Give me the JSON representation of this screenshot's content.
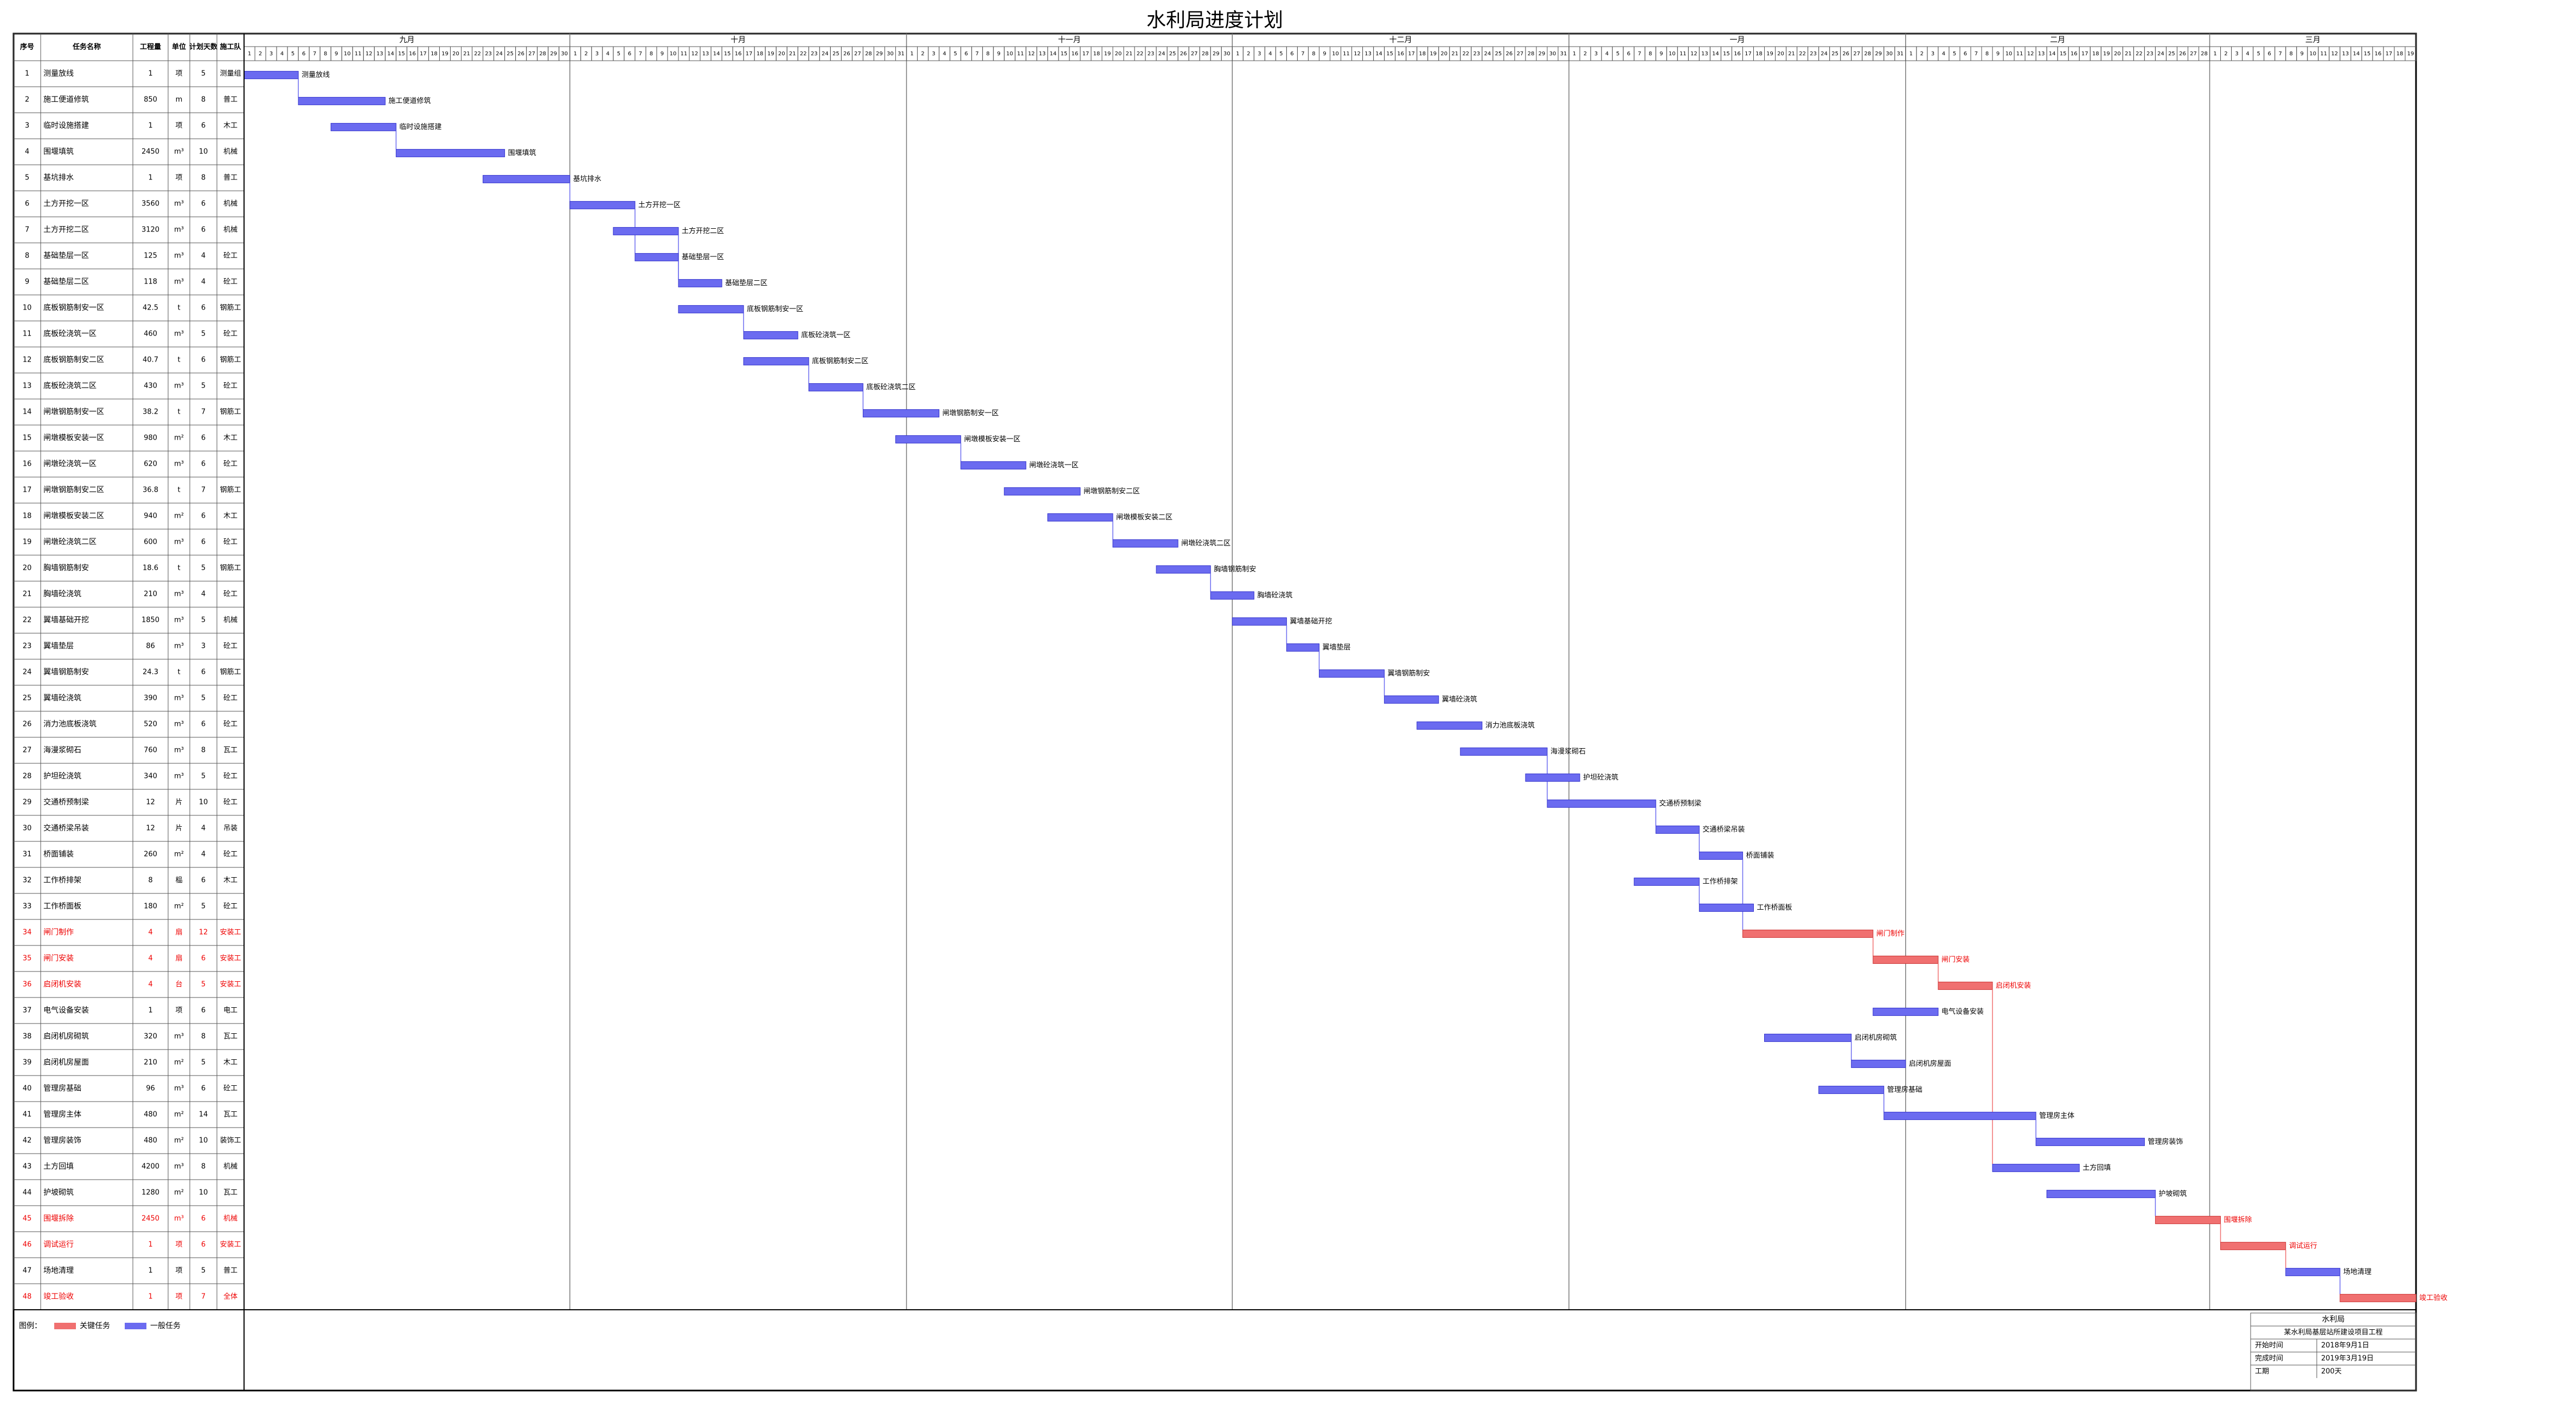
{
  "chart_data": {
    "type": "gantt",
    "title": "水利局进度计划",
    "columns": [
      "序号",
      "任务名称",
      "工程量",
      "单位",
      "计划天数",
      "施工队"
    ],
    "months": [
      {
        "label": "九月",
        "start": 0
      },
      {
        "label": "十月",
        "start": 30
      },
      {
        "label": "十一月",
        "start": 61
      },
      {
        "label": "十二月",
        "start": 91
      },
      {
        "label": "一月",
        "start": 122
      },
      {
        "label": "二月",
        "start": 153
      },
      {
        "label": "三月",
        "start": 181
      }
    ],
    "days": [
      1,
      2,
      3,
      4,
      5,
      6,
      7,
      8,
      9,
      10,
      11,
      12,
      13,
      14,
      15,
      16,
      17,
      18,
      19,
      20,
      21,
      22,
      23,
      24,
      25,
      26,
      27,
      28,
      29,
      30,
      1,
      2,
      3,
      4,
      5,
      6,
      7,
      8,
      9,
      10,
      11,
      12,
      13,
      14,
      15,
      16,
      17,
      18,
      19,
      20,
      21,
      22,
      23,
      24,
      25,
      26,
      27,
      28,
      29,
      30,
      31,
      1,
      2,
      3,
      4,
      5,
      6,
      7,
      8,
      9,
      10,
      11,
      12,
      13,
      14,
      15,
      16,
      17,
      18,
      19,
      20,
      21,
      22,
      23,
      24,
      25,
      26,
      27,
      28,
      29,
      30,
      1,
      2,
      3,
      4,
      5,
      6,
      7,
      8,
      9,
      10,
      11,
      12,
      13,
      14,
      15,
      16,
      17,
      18,
      19,
      20,
      21,
      22,
      23,
      24,
      25,
      26,
      27,
      28,
      29,
      30,
      31,
      1,
      2,
      3,
      4,
      5,
      6,
      7,
      8,
      9,
      10,
      11,
      12,
      13,
      14,
      15,
      16,
      17,
      18,
      19,
      20,
      21,
      22,
      23,
      24,
      25,
      26,
      27,
      28,
      29,
      30,
      31,
      1,
      2,
      3,
      4,
      5,
      6,
      7,
      8,
      9,
      10,
      11,
      12,
      13,
      14,
      15,
      16,
      17,
      18,
      19,
      20,
      21,
      22,
      23,
      24,
      25,
      26,
      27,
      28,
      1,
      2,
      3,
      4,
      5,
      6,
      7,
      8,
      9,
      10,
      11,
      12,
      13,
      14,
      15,
      16,
      17,
      18,
      19
    ],
    "xlim": [
      0,
      200
    ],
    "ids": [
      1,
      2,
      3,
      4,
      5,
      6,
      7,
      8,
      9,
      10,
      11,
      12,
      13,
      14,
      15,
      16,
      17,
      18,
      19,
      20,
      21,
      22,
      23,
      24,
      25,
      26,
      27,
      28,
      29,
      30,
      31,
      32,
      33,
      34,
      35,
      36,
      37,
      38,
      39,
      40,
      41,
      42,
      43,
      44,
      45,
      46,
      47,
      48
    ],
    "tasks": [
      "测量放线",
      "施工便道修筑",
      "临时设施搭建",
      "围堰填筑",
      "基坑排水",
      "土方开挖一区",
      "土方开挖二区",
      "基础垫层一区",
      "基础垫层二区",
      "底板钢筋制安一区",
      "底板砼浇筑一区",
      "底板钢筋制安二区",
      "底板砼浇筑二区",
      "闸墩钢筋制安一区",
      "闸墩模板安装一区",
      "闸墩砼浇筑一区",
      "闸墩钢筋制安二区",
      "闸墩模板安装二区",
      "闸墩砼浇筑二区",
      "胸墙钢筋制安",
      "胸墙砼浇筑",
      "翼墙基础开挖",
      "翼墙垫层",
      "翼墙钢筋制安",
      "翼墙砼浇筑",
      "消力池底板浇筑",
      "海漫浆砌石",
      "护坦砼浇筑",
      "交通桥预制梁",
      "交通桥梁吊装",
      "桥面铺装",
      "工作桥排架",
      "工作桥面板",
      "闸门制作",
      "闸门安装",
      "启闭机安装",
      "电气设备安装",
      "启闭机房砌筑",
      "启闭机房屋面",
      "管理房基础",
      "管理房主体",
      "管理房装饰",
      "土方回填",
      "护坡砌筑",
      "围堰拆除",
      "调试运行",
      "场地清理",
      "竣工验收"
    ],
    "quantities": [
      1,
      850,
      1,
      2450,
      1,
      3560,
      3120,
      125,
      118,
      42.5,
      460,
      40.7,
      430,
      38.2,
      980,
      620,
      36.8,
      940,
      600,
      18.6,
      210,
      1850,
      86,
      24.3,
      390,
      520,
      760,
      340,
      12,
      12,
      260,
      8,
      180,
      4,
      4,
      4,
      1,
      320,
      210,
      96,
      480,
      480,
      4200,
      1280,
      2450,
      1,
      1,
      1
    ],
    "units": [
      "项",
      "m",
      "项",
      "m³",
      "项",
      "m³",
      "m³",
      "m³",
      "m³",
      "t",
      "m³",
      "t",
      "m³",
      "t",
      "m²",
      "m³",
      "t",
      "m²",
      "m³",
      "t",
      "m³",
      "m³",
      "m³",
      "t",
      "m³",
      "m³",
      "m³",
      "m³",
      "片",
      "片",
      "m²",
      "榀",
      "m²",
      "扇",
      "扇",
      "台",
      "项",
      "m³",
      "m²",
      "m³",
      "m²",
      "m²",
      "m³",
      "m²",
      "m³",
      "项",
      "项",
      "项"
    ],
    "durations": [
      5,
      8,
      6,
      10,
      8,
      6,
      6,
      4,
      4,
      6,
      5,
      6,
      5,
      7,
      6,
      6,
      7,
      6,
      6,
      5,
      4,
      5,
      3,
      6,
      5,
      6,
      8,
      5,
      10,
      4,
      4,
      6,
      5,
      12,
      6,
      5,
      6,
      8,
      5,
      6,
      14,
      10,
      8,
      10,
      6,
      6,
      5,
      7
    ],
    "crews": [
      "测量组",
      "普工",
      "木工",
      "机械",
      "普工",
      "机械",
      "机械",
      "砼工",
      "砼工",
      "钢筋工",
      "砼工",
      "钢筋工",
      "砼工",
      "钢筋工",
      "木工",
      "砼工",
      "钢筋工",
      "木工",
      "砼工",
      "钢筋工",
      "砼工",
      "机械",
      "砼工",
      "钢筋工",
      "砼工",
      "砼工",
      "瓦工",
      "砼工",
      "砼工",
      "吊装",
      "砼工",
      "木工",
      "砼工",
      "安装工",
      "安装工",
      "安装工",
      "电工",
      "瓦工",
      "木工",
      "砼工",
      "瓦工",
      "装饰工",
      "机械",
      "瓦工",
      "机械",
      "安装工",
      "普工",
      "全体"
    ],
    "starts": [
      0,
      5,
      8,
      14,
      22,
      30,
      34,
      36,
      40,
      40,
      46,
      46,
      52,
      57,
      60,
      66,
      70,
      74,
      80,
      84,
      89,
      91,
      96,
      99,
      105,
      108,
      112,
      118,
      120,
      130,
      134,
      128,
      134,
      138,
      150,
      156,
      150,
      140,
      148,
      145,
      151,
      165,
      161,
      166,
      176,
      182,
      188,
      193
    ],
    "ends": [
      5,
      13,
      14,
      24,
      30,
      36,
      40,
      40,
      44,
      46,
      51,
      52,
      57,
      64,
      66,
      72,
      77,
      80,
      86,
      89,
      93,
      96,
      99,
      105,
      110,
      114,
      120,
      123,
      130,
      134,
      138,
      134,
      139,
      150,
      156,
      161,
      156,
      148,
      153,
      151,
      165,
      175,
      169,
      176,
      182,
      188,
      193,
      200
    ],
    "critical": [
      false,
      false,
      false,
      false,
      false,
      false,
      false,
      false,
      false,
      false,
      false,
      false,
      false,
      false,
      false,
      false,
      false,
      false,
      false,
      false,
      false,
      false,
      false,
      false,
      false,
      false,
      false,
      false,
      false,
      false,
      false,
      false,
      false,
      true,
      true,
      true,
      false,
      false,
      false,
      false,
      false,
      false,
      false,
      false,
      true,
      true,
      false,
      true
    ],
    "normal_color": "#6b6bf0",
    "critical_color": "#f07070",
    "legend": {
      "critical": "关键任务",
      "normal": "一般任务",
      "label": "图例："
    },
    "title_block": {
      "title": "水利局",
      "project": "某水利局基层站所建设项目工程",
      "rows": [
        [
          "开始时间",
          "2018年9月1日"
        ],
        [
          "完成时间",
          "2019年3月19日"
        ],
        [
          "工期",
          "200天"
        ]
      ]
    }
  }
}
